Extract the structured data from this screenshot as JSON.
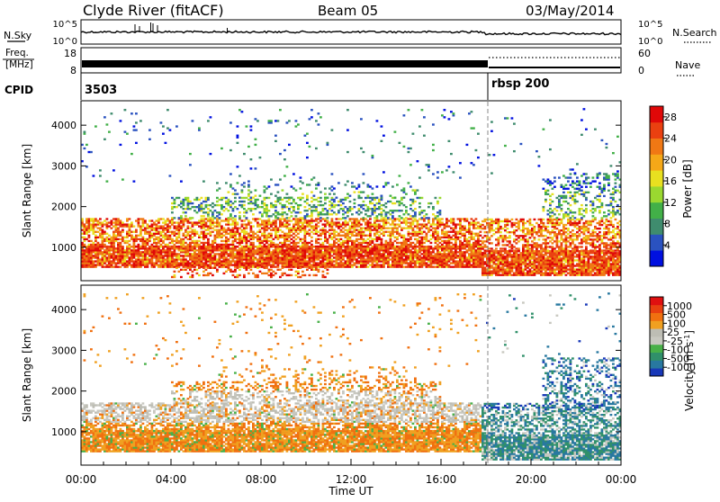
{
  "header": {
    "title": "Clyde River (fitACF)",
    "beam": "Beam 05",
    "date": "03/May/2014"
  },
  "chart_data": {
    "type": "heatmap",
    "time_axis": {
      "label": "Time UT",
      "range_hours": [
        0,
        24
      ],
      "ticks": [
        "00:00",
        "04:00",
        "08:00",
        "12:00",
        "16:00",
        "20:00",
        "00:00"
      ]
    },
    "mode_change_time_hours": 18.0,
    "top_panels": {
      "nsky": {
        "label": "N.Sky",
        "left_ticks": [
          "10^5",
          "10^0"
        ],
        "right_label": "N.Search",
        "right_ticks": [
          "10^5",
          "10^0"
        ]
      },
      "freq": {
        "label_line1": "Freq.",
        "label_line2": "[MHz]",
        "left_ticks": [
          "18",
          "8"
        ],
        "right_label": "Nave",
        "right_ticks": [
          "60",
          "0"
        ]
      },
      "cpid": {
        "label": "CPID",
        "segments": [
          {
            "start_hours": 0,
            "text": "3503"
          },
          {
            "start_hours": 18.0,
            "text": "rbsp 200"
          }
        ]
      }
    },
    "panels": [
      {
        "id": "power",
        "ylabel": "Slant Range [km]",
        "y_range_km": [
          180,
          4600
        ],
        "y_ticks": [
          "1000",
          "2000",
          "3000",
          "4000"
        ],
        "colorbar": {
          "label": "Power [dB]",
          "ticks": [
            "4",
            "8",
            "12",
            "16",
            "20",
            "24",
            "28"
          ],
          "colors": [
            "#0010e0",
            "#2a52c0",
            "#3f8c6e",
            "#42b048",
            "#9ad830",
            "#e8e020",
            "#f5a818",
            "#f07814",
            "#ea4010",
            "#e00808"
          ]
        }
      },
      {
        "id": "velocity",
        "ylabel": "Slant Range [km]",
        "y_range_km": [
          180,
          4600
        ],
        "y_ticks": [
          "1000",
          "2000",
          "3000",
          "4000"
        ],
        "colorbar": {
          "label": "Velocity [m s",
          "label_sup": "-1",
          "label_end": "]",
          "ticks": [
            "1000",
            "500",
            "100",
            "25",
            "-25",
            "-100",
            "-500",
            "-1000"
          ],
          "colors": [
            "#1838b8",
            "#2878a0",
            "#30906a",
            "#48b048",
            "#c8c8c0",
            "#bdbdb4",
            "#f0a020",
            "#f07010",
            "#e84010",
            "#e01010"
          ]
        }
      }
    ]
  }
}
